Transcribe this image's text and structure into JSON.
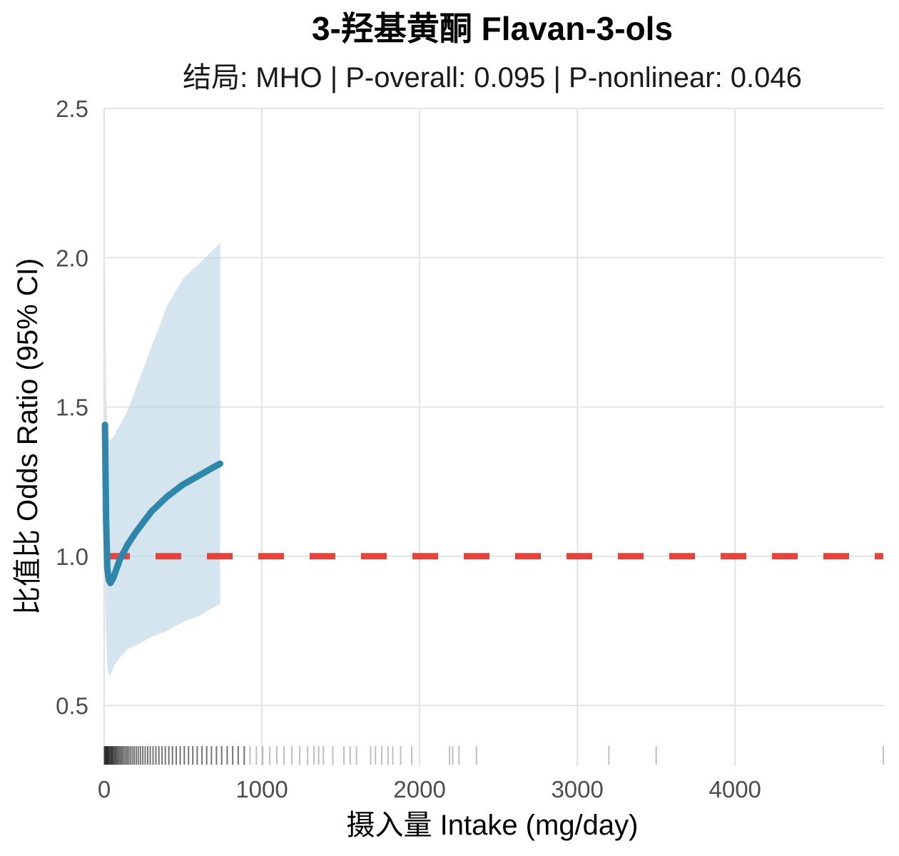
{
  "chart_data": {
    "type": "line",
    "title": "3-羟基黄酮 Flavan-3-ols",
    "subtitle": "结局: MHO | P-overall: 0.095 | P-nonlinear: 0.046",
    "xlabel": "摄入量 Intake (mg/day)",
    "ylabel": "比值比 Odds Ratio (95% CI)",
    "xlim": [
      0,
      4940
    ],
    "ylim": [
      0.3,
      2.5
    ],
    "x_ticks": [
      0,
      1000,
      2000,
      3000,
      4000
    ],
    "x_tick_labels": [
      "0",
      "1000",
      "2000",
      "3000",
      "4000"
    ],
    "y_ticks": [
      0.5,
      1.0,
      1.5,
      2.0,
      2.5
    ],
    "y_tick_labels": [
      "0.5",
      "1.0",
      "1.5",
      "2.0",
      "2.5"
    ],
    "grid": true,
    "reference_line": {
      "y": 1.0,
      "style": "dashed",
      "color": "#e8433a"
    },
    "series": [
      {
        "color": "#2e86ab",
        "x": [
          5,
          12,
          20,
          30,
          40,
          60,
          100,
          150,
          200,
          300,
          400,
          500,
          600,
          700,
          735
        ],
        "or": [
          1.44,
          1.12,
          0.96,
          0.92,
          0.91,
          0.93,
          0.99,
          1.04,
          1.08,
          1.15,
          1.2,
          1.24,
          1.27,
          1.3,
          1.31
        ],
        "lower": [
          0.88,
          0.72,
          0.63,
          0.6,
          0.6,
          0.63,
          0.66,
          0.69,
          0.7,
          0.73,
          0.75,
          0.78,
          0.8,
          0.83,
          0.84
        ],
        "upper": [
          2.05,
          1.55,
          1.42,
          1.39,
          1.39,
          1.4,
          1.44,
          1.49,
          1.56,
          1.7,
          1.84,
          1.93,
          1.98,
          2.03,
          2.05
        ],
        "ci_color": "#bdd7e7"
      }
    ],
    "rug": {
      "color": "#000000",
      "values": [
        2,
        6,
        10,
        14,
        18,
        22,
        26,
        30,
        35,
        40,
        45,
        50,
        55,
        60,
        66,
        72,
        78,
        85,
        92,
        100,
        108,
        116,
        125,
        135,
        145,
        155,
        166,
        178,
        190,
        203,
        216,
        230,
        245,
        260,
        276,
        292,
        310,
        328,
        347,
        367,
        388,
        410,
        433,
        457,
        482,
        508,
        535,
        562,
        590,
        620,
        650,
        680,
        712,
        745,
        780,
        815,
        850,
        888,
        925,
        965,
        1005,
        1050,
        1095,
        1140,
        1190,
        1240,
        1290,
        1330,
        1360,
        1390,
        1450,
        1520,
        1560,
        1600,
        1690,
        1720,
        1760,
        1800,
        1830,
        1880,
        1950,
        2190,
        2210,
        2250,
        2360,
        3200,
        3500,
        4940
      ]
    }
  }
}
